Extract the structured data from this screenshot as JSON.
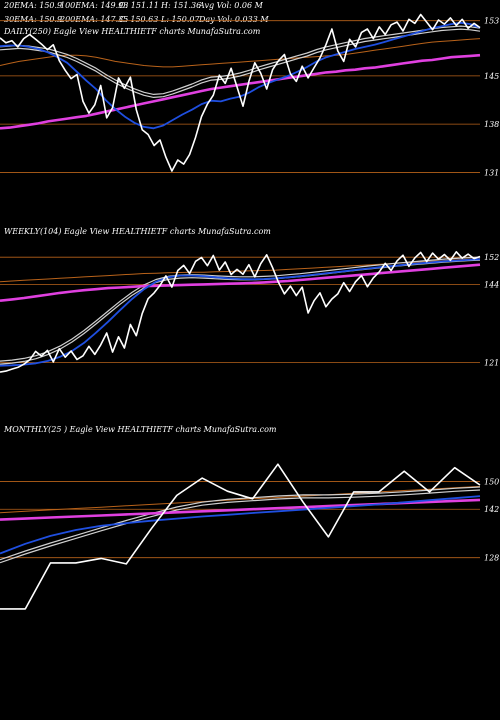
{
  "header": {
    "row1": [
      "20EMA: 150.9",
      "100EMA: 149.93",
      "O: 151.11",
      "H: 151.36",
      "Avg Vol: 0.06  M"
    ],
    "row2": [
      "30EMA: 150.9",
      "200EMA: 147.35",
      "C: 150.63",
      "L: 150.07",
      "Day Vol: 0.033 M"
    ]
  },
  "colors": {
    "background": "#000000",
    "price": "#ffffff",
    "ema_blue": "#1f4fe0",
    "ema_magenta": "#e040e0",
    "ema_orange": "#b8621a",
    "ema_grey": "#cfcfcf",
    "grid_orange": "#b8621a"
  },
  "chart_data": [
    {
      "type": "line",
      "caption": "DAILY(250) Eagle  View  HEALTHIETF charts MunafaSutra.com",
      "y_ticks": [
        "153",
        "145",
        "138",
        "131"
      ],
      "ylim": [
        127,
        156
      ],
      "grid": true,
      "series": [
        {
          "key": "price",
          "values": [
            150.5,
            149.8,
            150.1,
            149.2,
            150.4,
            151.0,
            150.3,
            149.6,
            148.8,
            149.5,
            147.2,
            145.8,
            144.6,
            145.2,
            141.3,
            139.6,
            140.8,
            143.6,
            138.9,
            140.4,
            144.7,
            143.2,
            144.8,
            140.1,
            137.2,
            136.5,
            134.9,
            135.7,
            133.2,
            131.2,
            132.8,
            132.2,
            133.6,
            136.1,
            139.1,
            140.9,
            142.2,
            145.1,
            143.9,
            146.1,
            143.4,
            140.6,
            144.2,
            146.9,
            145.4,
            143.1,
            145.9,
            147.2,
            148.1,
            145.3,
            144.2,
            146.4,
            144.7,
            146.2,
            147.6,
            149.5,
            151.8,
            148.6,
            147.1,
            150.3,
            149.2,
            151.3,
            151.8,
            150.4,
            152.1,
            151.0,
            152.4,
            152.8,
            151.5,
            153.2,
            152.6,
            153.9,
            152.8,
            151.7,
            153.1,
            152.5,
            153.4,
            152.3,
            153.2,
            151.9,
            152.6,
            152.0
          ]
        },
        {
          "key": "ema_blue",
          "values": [
            149.3,
            149.4,
            149.4,
            149.2,
            148.9,
            148.4,
            147.7,
            146.9,
            145.6,
            144.3,
            143.1,
            141.5,
            140.2,
            139.1,
            138.2,
            137.6,
            137.4,
            137.8,
            138.6,
            139.4,
            140.1,
            140.9,
            141.4,
            141.3,
            141.7,
            142.0,
            142.6,
            143.4,
            144.0,
            144.5,
            145.0,
            145.6,
            146.3,
            147.1,
            147.7,
            148.1,
            148.5,
            148.9,
            149.2,
            149.5,
            149.9,
            150.3,
            150.7,
            151.1,
            151.5,
            151.9,
            152.2,
            152.5,
            152.7,
            152.5,
            152.0
          ]
        },
        {
          "key": "ema_magenta",
          "values": [
            137.4,
            137.5,
            137.7,
            137.9,
            138.1,
            138.4,
            138.6,
            138.8,
            139.0,
            139.2,
            139.5,
            139.8,
            140.1,
            140.4,
            140.7,
            141.0,
            141.3,
            141.6,
            141.9,
            142.2,
            142.5,
            142.8,
            143.1,
            143.3,
            143.5,
            143.7,
            143.9,
            144.1,
            144.3,
            144.5,
            144.7,
            144.9,
            145.1,
            145.3,
            145.5,
            145.6,
            145.8,
            145.9,
            146.1,
            146.2,
            146.4,
            146.6,
            146.8,
            147.0,
            147.2,
            147.3,
            147.5,
            147.7,
            147.8,
            147.9,
            148.0
          ]
        },
        {
          "key": "ema_orange",
          "values": [
            146.5,
            146.8,
            147.1,
            147.3,
            147.5,
            147.7,
            147.9,
            148.0,
            148.0,
            147.9,
            147.7,
            147.4,
            147.1,
            146.9,
            146.7,
            146.5,
            146.4,
            146.3,
            146.3,
            146.4,
            146.5,
            146.6,
            146.7,
            146.8,
            146.9,
            147.0,
            147.1,
            147.2,
            147.3,
            147.4,
            147.5,
            147.6,
            147.7,
            147.8,
            147.9,
            148.0,
            148.1,
            148.3,
            148.5,
            148.7,
            148.9,
            149.1,
            149.3,
            149.5,
            149.7,
            149.9,
            150.0,
            150.1,
            150.2,
            150.3,
            150.4
          ]
        },
        {
          "key": "ema_grey",
          "values": [
            149.0,
            149.1,
            149.2,
            149.1,
            148.9,
            148.7,
            148.3,
            147.9,
            147.3,
            146.6,
            145.9,
            145.0,
            144.2,
            143.5,
            142.9,
            142.4,
            142.1,
            142.2,
            142.6,
            143.1,
            143.6,
            144.2,
            144.6,
            144.7,
            144.9,
            145.2,
            145.6,
            146.1,
            146.5,
            146.9,
            147.3,
            147.7,
            148.1,
            148.6,
            149.0,
            149.3,
            149.6,
            149.9,
            150.2,
            150.4,
            150.6,
            150.8,
            151.0,
            151.2,
            151.4,
            151.6,
            151.8,
            151.9,
            152.0,
            151.9,
            151.7
          ]
        }
      ]
    },
    {
      "type": "line",
      "caption": "WEEKLY(104) Eagle  View  HEALTHIETF charts MunafaSutra.com",
      "y_ticks": [
        "152",
        "144",
        "121"
      ],
      "ylim": [
        110,
        160
      ],
      "grid": true,
      "series": [
        {
          "key": "price",
          "values": [
            118.2,
            118.5,
            119.1,
            119.6,
            120.5,
            121.8,
            124.3,
            122.9,
            124.6,
            121.2,
            125.1,
            122.6,
            124.4,
            121.9,
            123.0,
            125.8,
            123.4,
            126.2,
            129.7,
            124.1,
            128.6,
            125.3,
            132.2,
            128.9,
            135.4,
            139.8,
            141.5,
            143.7,
            146.5,
            143.2,
            148.1,
            149.6,
            147.2,
            150.8,
            151.9,
            149.5,
            152.5,
            148.2,
            150.6,
            146.9,
            148.4,
            147.0,
            149.8,
            146.2,
            150.1,
            152.7,
            148.9,
            144.6,
            141.2,
            143.5,
            140.7,
            143.2,
            135.6,
            139.2,
            141.5,
            137.4,
            139.7,
            141.2,
            144.5,
            141.9,
            144.8,
            146.6,
            143.3,
            145.9,
            147.7,
            150.2,
            148.1,
            150.9,
            152.6,
            149.3,
            151.8,
            153.4,
            150.7,
            153.2,
            151.4,
            152.8,
            151.1,
            153.6,
            151.7,
            152.9,
            151.6,
            152.2
          ]
        },
        {
          "key": "ema_blue",
          "values": [
            120.1,
            120.2,
            120.4,
            120.8,
            121.5,
            122.7,
            124.4,
            126.8,
            129.8,
            133.0,
            136.4,
            139.7,
            142.6,
            144.8,
            146.1,
            146.6,
            146.6,
            146.4,
            146.1,
            145.8,
            145.6,
            145.5,
            145.6,
            145.8,
            146.1,
            146.4,
            146.8,
            147.2,
            147.6,
            148.0,
            148.4,
            148.8,
            149.2,
            149.5,
            149.9,
            150.2,
            150.5,
            150.8,
            151.0,
            151.2,
            151.4
          ]
        },
        {
          "key": "ema_magenta",
          "values": [
            139.2,
            139.6,
            140.0,
            140.5,
            141.0,
            141.5,
            141.9,
            142.3,
            142.6,
            142.9,
            143.1,
            143.3,
            143.5,
            143.6,
            143.7,
            143.8,
            143.9,
            144.0,
            144.1,
            144.2,
            144.3,
            144.4,
            144.6,
            144.8,
            145.0,
            145.3,
            145.6,
            145.9,
            146.2,
            146.5,
            146.8,
            147.1,
            147.4,
            147.7,
            148.0,
            148.3,
            148.6,
            148.9,
            149.2,
            149.5,
            149.8
          ]
        },
        {
          "key": "ema_orange",
          "values": [
            144.8,
            145.0,
            145.2,
            145.4,
            145.6,
            145.8,
            146.0,
            146.2,
            146.4,
            146.6,
            146.8,
            147.0,
            147.2,
            147.3,
            147.4,
            147.5,
            147.6,
            147.6,
            147.7,
            147.8,
            147.9,
            148.0,
            148.1,
            148.2,
            148.4,
            148.6,
            148.8,
            149.0,
            149.2,
            149.4,
            149.6,
            149.8,
            150.0,
            150.2,
            150.4,
            150.6,
            150.8,
            151.0,
            151.2,
            151.4,
            151.6
          ]
        },
        {
          "key": "ema_grey",
          "values": [
            121.0,
            121.3,
            121.8,
            122.6,
            123.8,
            125.4,
            127.5,
            130.0,
            132.8,
            135.7,
            138.6,
            141.2,
            143.4,
            145.0,
            145.9,
            146.3,
            146.4,
            146.3,
            146.1,
            145.9,
            145.8,
            145.8,
            145.9,
            146.1,
            146.4,
            146.7,
            147.1,
            147.5,
            147.9,
            148.3,
            148.7,
            149.1,
            149.4,
            149.8,
            150.1,
            150.4,
            150.7,
            151.0,
            151.2,
            151.4,
            151.6
          ]
        }
      ]
    },
    {
      "type": "line",
      "caption": "MONTHLY(25         ) Eagle  View  HEALTHIETF charts MunafaSutra.com",
      "y_ticks": [
        "150",
        "142",
        "128"
      ],
      "ylim": [
        110,
        162
      ],
      "grid": true,
      "series": [
        {
          "key": "price",
          "values": [
            113.2,
            113.2,
            126.5,
            126.5,
            127.8,
            126.2,
            136.5,
            146.0,
            151.0,
            147.2,
            145.0,
            155.0,
            144.0,
            134.0,
            147.0,
            147.0,
            153.0,
            147.0,
            154.0,
            149.0
          ]
        },
        {
          "key": "ema_blue",
          "values": [
            129.2,
            132.0,
            134.3,
            136.0,
            137.2,
            138.0,
            138.7,
            139.3,
            139.9,
            140.4,
            140.9,
            141.4,
            141.9,
            142.4,
            142.9,
            143.4,
            144.0,
            144.6,
            145.2,
            145.8
          ]
        },
        {
          "key": "ema_magenta",
          "values": [
            139.0,
            139.3,
            139.6,
            139.9,
            140.2,
            140.5,
            140.8,
            141.1,
            141.4,
            141.7,
            142.0,
            142.3,
            142.6,
            142.9,
            143.2,
            143.5,
            143.8,
            144.1,
            144.4,
            144.7
          ]
        },
        {
          "key": "ema_orange",
          "values": [
            141.0,
            141.4,
            141.8,
            142.2,
            142.6,
            143.0,
            143.4,
            143.8,
            144.2,
            144.6,
            145.0,
            145.4,
            145.8,
            146.2,
            146.6,
            147.0,
            147.4,
            147.8,
            148.2,
            148.6
          ]
        },
        {
          "key": "ema_grey",
          "values": [
            127.0,
            129.5,
            131.8,
            134.0,
            136.2,
            138.3,
            140.3,
            142.2,
            143.6,
            144.4,
            144.9,
            145.4,
            145.7,
            145.7,
            145.9,
            146.2,
            146.6,
            147.1,
            147.6,
            148.0
          ]
        }
      ]
    }
  ]
}
